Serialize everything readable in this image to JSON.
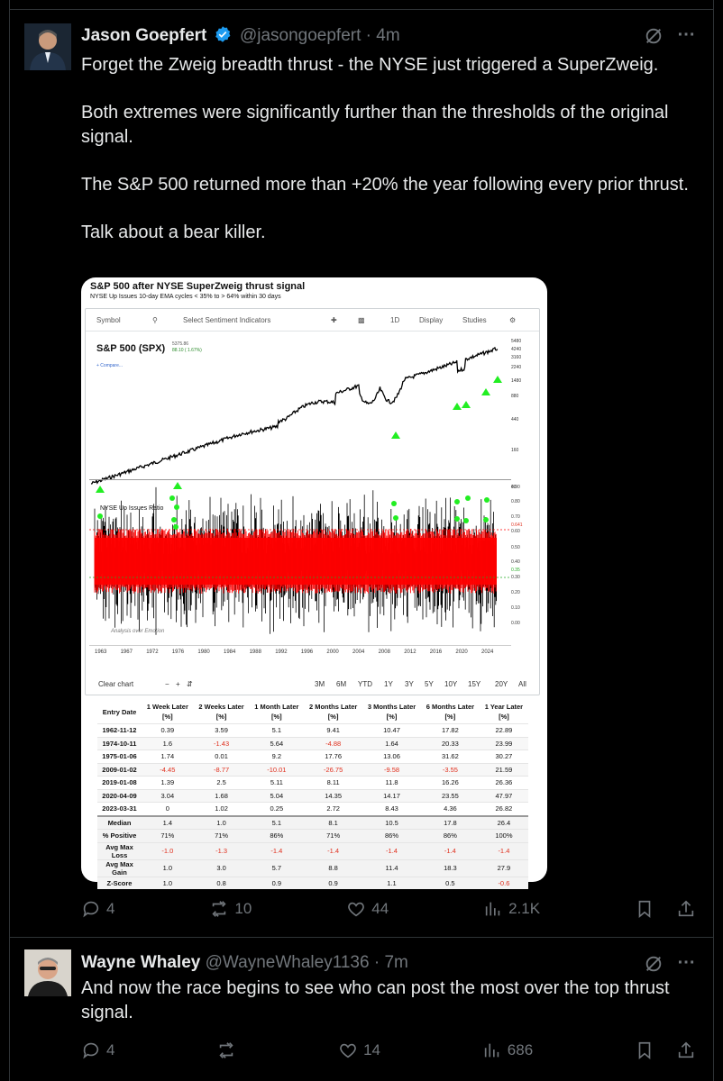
{
  "post": {
    "author_name": "Jason Goepfert",
    "handle": "@jasongoepfert",
    "time": "4m",
    "paragraphs": [
      "Forget the Zweig breadth thrust - the NYSE just triggered a SuperZweig.",
      "Both extremes were significantly further than the thresholds of the original signal.",
      "The S&P 500 returned more than +20% the year following every prior thrust.",
      "Talk about a bear killer."
    ],
    "replies": "4",
    "reposts": "10",
    "likes": "44",
    "views": "2.1K"
  },
  "card": {
    "title": "S&P 500 after NYSE SuperZweig thrust signal",
    "subtitle": "NYSE Up Issues 10-day EMA cycles < 35% to > 64% within 30 days",
    "toolbar": {
      "symbol": "Symbol",
      "select": "Select Sentiment Indicators",
      "interval": "1D",
      "display": "Display",
      "studies": "Studies"
    },
    "spx_label": "S&P 500 (SPX)",
    "spx_value": "5375.86",
    "spx_change": "88.10 ( 1.67%)",
    "compare": "+ Compare...",
    "price_axis": [
      "5480",
      "4240",
      "3160",
      "2240",
      "1480",
      "880",
      "440",
      "160",
      "40"
    ],
    "osc_label": "NYSE Up Issues Ratio",
    "osc_axis": [
      "0.90",
      "0.80",
      "0.70",
      "0.641",
      "0.60",
      "0.50",
      "0.40",
      "0.35",
      "0.30",
      "0.20",
      "0.10",
      "0.00"
    ],
    "years": [
      "1963",
      "1967",
      "1972",
      "1976",
      "1980",
      "1984",
      "1988",
      "1992",
      "1996",
      "2000",
      "2004",
      "2008",
      "2012",
      "2016",
      "2020",
      "2024"
    ],
    "watermark": "Analysis over Emotion",
    "clear_chart": "Clear chart",
    "ranges": [
      "3M",
      "6M",
      "YTD",
      "1Y",
      "3Y",
      "5Y",
      "10Y",
      "15Y",
      "20Y",
      "All"
    ],
    "colors": {
      "signal": "#22ee22",
      "ratio_fill": "#ff0000",
      "negative": "#e0301e"
    }
  },
  "table": {
    "headers": [
      "Entry Date",
      "1 Week Later [%]",
      "2 Weeks Later [%]",
      "1 Month Later [%]",
      "2 Months Later [%]",
      "3 Months Later [%]",
      "6 Months Later [%]",
      "1 Year Later [%]"
    ],
    "rows": [
      [
        "1962-11-12",
        "0.39",
        "3.59",
        "5.1",
        "9.41",
        "10.47",
        "17.82",
        "22.89"
      ],
      [
        "1974-10-11",
        "1.6",
        "-1.43",
        "5.64",
        "-4.88",
        "1.64",
        "20.33",
        "23.99"
      ],
      [
        "1975-01-06",
        "1.74",
        "0.01",
        "9.2",
        "17.76",
        "13.06",
        "31.62",
        "30.27"
      ],
      [
        "2009-01-02",
        "-4.45",
        "-8.77",
        "-10.01",
        "-26.75",
        "-9.58",
        "-3.55",
        "21.59"
      ],
      [
        "2019-01-08",
        "1.39",
        "2.5",
        "5.11",
        "8.11",
        "11.8",
        "16.26",
        "26.36"
      ],
      [
        "2020-04-09",
        "3.04",
        "1.68",
        "5.04",
        "14.35",
        "14.17",
        "23.55",
        "47.97"
      ],
      [
        "2023-03-31",
        "0",
        "1.02",
        "0.25",
        "2.72",
        "8.43",
        "4.36",
        "26.82"
      ]
    ],
    "summary": [
      [
        "Median",
        "1.4",
        "1.0",
        "5.1",
        "8.1",
        "10.5",
        "17.8",
        "26.4"
      ],
      [
        "% Positive",
        "71%",
        "71%",
        "86%",
        "71%",
        "86%",
        "86%",
        "100%"
      ],
      [
        "Avg Max Loss",
        "-1.0",
        "-1.3",
        "-1.4",
        "-1.4",
        "-1.4",
        "-1.4",
        "-1.4"
      ],
      [
        "Avg Max Gain",
        "1.0",
        "3.0",
        "5.7",
        "8.8",
        "11.4",
        "18.3",
        "27.9"
      ],
      [
        "Z-Score",
        "1.0",
        "0.8",
        "0.9",
        "0.9",
        "1.1",
        "0.5",
        "-0.6"
      ]
    ]
  },
  "reply": {
    "author_name": "Wayne Whaley",
    "handle": "@WayneWhaley1136",
    "time": "7m",
    "text": "And now the race begins to see who can post the most over the top thrust signal.",
    "replies": "4",
    "likes": "14",
    "views": "686"
  },
  "ui": {
    "separator": "·",
    "more": "···",
    "verified_color": "#1d9bf0"
  }
}
